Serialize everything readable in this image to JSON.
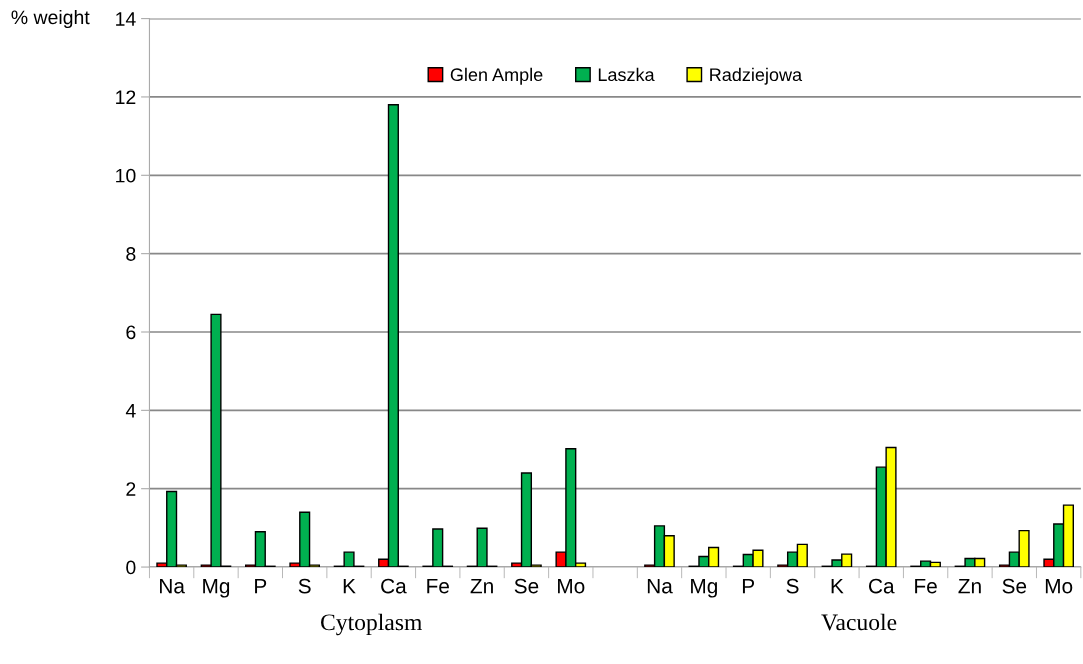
{
  "chart_data": {
    "type": "bar",
    "ylabel": "% weight",
    "categories": [
      "Na",
      "Mg",
      "P",
      "S",
      "K",
      "Ca",
      "Fe",
      "Zn",
      "Se",
      "Mo",
      null,
      "Na",
      "Mg",
      "P",
      "S",
      "K",
      "Ca",
      "Fe",
      "Zn",
      "Se",
      "Mo"
    ],
    "series": [
      {
        "name": "Glen Ample",
        "color": "#ff0000",
        "values": [
          0.1,
          0.05,
          0.05,
          0.1,
          0.02,
          0.2,
          0.02,
          0.02,
          0.1,
          0.38,
          null,
          0.05,
          0.02,
          0.02,
          0.05,
          0.02,
          0.02,
          0.02,
          0.02,
          0.05,
          0.2
        ]
      },
      {
        "name": "Laszka",
        "color": "#00b050",
        "values": [
          1.93,
          6.45,
          0.9,
          1.4,
          0.38,
          11.8,
          0.97,
          0.99,
          2.4,
          3.02,
          null,
          1.05,
          0.27,
          0.32,
          0.38,
          0.18,
          2.55,
          0.15,
          0.22,
          0.38,
          1.1
        ]
      },
      {
        "name": "Radziejowa",
        "color": "#ffff00",
        "values": [
          0.05,
          0.02,
          0.02,
          0.05,
          0.02,
          0.02,
          0.02,
          0.02,
          0.05,
          0.1,
          null,
          0.8,
          0.5,
          0.43,
          0.58,
          0.33,
          3.05,
          0.12,
          0.22,
          0.93,
          1.58
        ]
      }
    ],
    "ylim": [
      0,
      14
    ],
    "yticks": [
      0,
      2,
      4,
      6,
      8,
      10,
      12,
      14
    ],
    "grid": "y",
    "legend": "top",
    "annotations": [
      "Cytoplasm",
      "Vacuole"
    ]
  }
}
